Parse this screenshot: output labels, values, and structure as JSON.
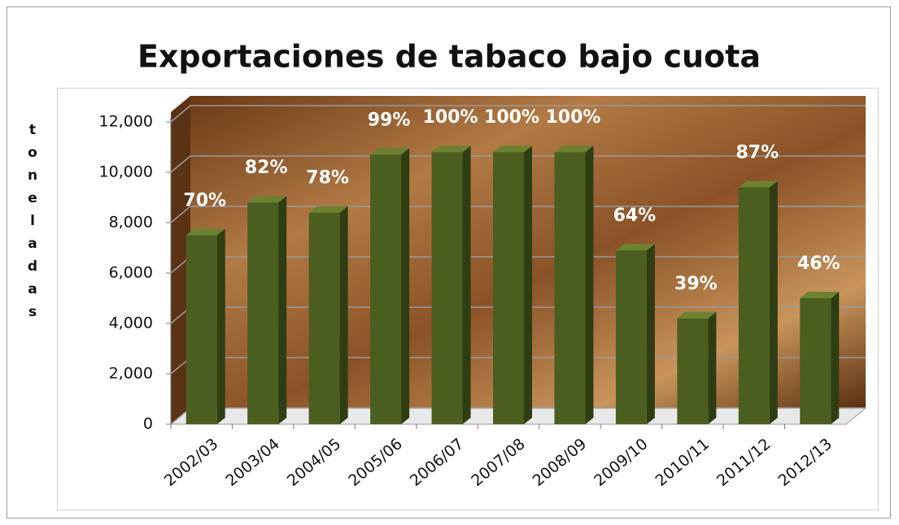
{
  "chart_data": {
    "type": "bar3d",
    "title": "Exportaciones de tabaco bajo cuota",
    "y_label": "toneladas",
    "categories": [
      "2002/03",
      "2003/04",
      "2004/05",
      "2005/06",
      "2006/07",
      "2007/08",
      "2008/09",
      "2009/10",
      "2010/11",
      "2011/12",
      "2012/13"
    ],
    "values": [
      7500,
      8800,
      8400,
      10700,
      10800,
      10800,
      10800,
      6900,
      4200,
      9400,
      5000
    ],
    "percent_labels": [
      "70%",
      "82%",
      "78%",
      "99%",
      "100%",
      "100%",
      "100%",
      "64%",
      "39%",
      "87%",
      "46%"
    ],
    "color": "#4a5e1f",
    "ylim": [
      0,
      12000
    ],
    "yticks": [
      {
        "value": 0,
        "label": "0"
      },
      {
        "value": 2000,
        "label": "2,000"
      },
      {
        "value": 4000,
        "label": "4,000"
      },
      {
        "value": 6000,
        "label": "6,000"
      },
      {
        "value": 8000,
        "label": "8,000"
      },
      {
        "value": 10000,
        "label": "10,000"
      },
      {
        "value": 12000,
        "label": "12,000"
      }
    ],
    "grid": true
  }
}
